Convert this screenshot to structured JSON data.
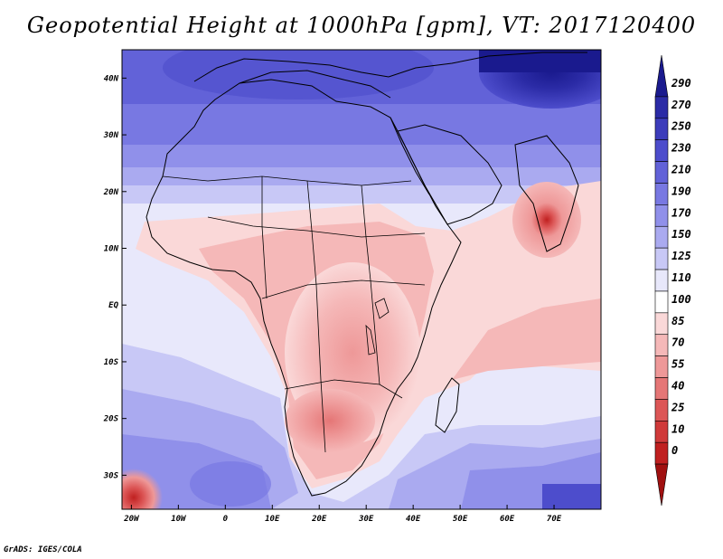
{
  "title": "Geopotential Height at 1000hPa [gpm], VT: 2017120400",
  "footer": "GrADS: IGES/COLA",
  "map": {
    "projection": "latlon",
    "lon_range": [
      -22,
      80
    ],
    "lat_range": [
      -36,
      45
    ],
    "lat_ticks": [
      {
        "value": 40,
        "label": "40N"
      },
      {
        "value": 30,
        "label": "30N"
      },
      {
        "value": 20,
        "label": "20N"
      },
      {
        "value": 10,
        "label": "10N"
      },
      {
        "value": 0,
        "label": "EQ"
      },
      {
        "value": -10,
        "label": "10S"
      },
      {
        "value": -20,
        "label": "20S"
      },
      {
        "value": -30,
        "label": "30S"
      }
    ],
    "lon_ticks": [
      {
        "value": -20,
        "label": "20W"
      },
      {
        "value": -10,
        "label": "10W"
      },
      {
        "value": 0,
        "label": "0"
      },
      {
        "value": 10,
        "label": "10E"
      },
      {
        "value": 20,
        "label": "20E"
      },
      {
        "value": 30,
        "label": "30E"
      },
      {
        "value": 40,
        "label": "40E"
      },
      {
        "value": 50,
        "label": "50E"
      },
      {
        "value": 60,
        "label": "60E"
      },
      {
        "value": 70,
        "label": "70E"
      }
    ]
  },
  "colorbar": {
    "levels": [
      "290",
      "270",
      "250",
      "230",
      "210",
      "190",
      "170",
      "150",
      "125",
      "110",
      "100",
      "85",
      "70",
      "55",
      "40",
      "25",
      "10",
      "0"
    ],
    "colors": [
      "#1a1a8e",
      "#2b2ba6",
      "#3c3cbb",
      "#4d4dcc",
      "#6262d8",
      "#7878e2",
      "#9090ea",
      "#aaaaf0",
      "#c8c8f6",
      "#e8e8fb",
      "#ffffff",
      "#fad8d8",
      "#f5b8b8",
      "#ee9898",
      "#e57676",
      "#dc5656",
      "#d03a3a",
      "#c02020",
      "#a01010"
    ]
  }
}
